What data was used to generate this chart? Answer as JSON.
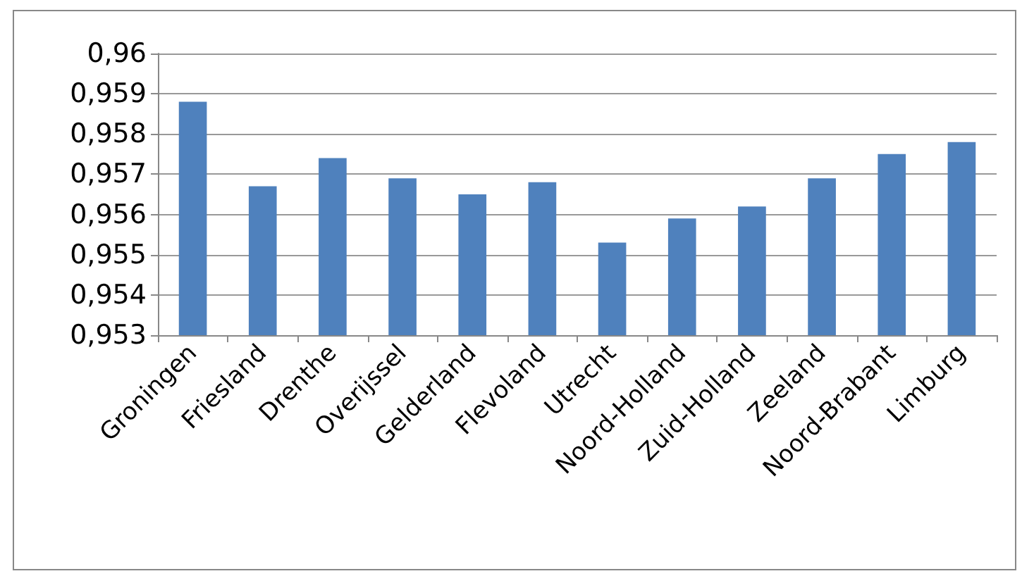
{
  "chart_data": {
    "type": "bar",
    "categories": [
      "Groningen",
      "Friesland",
      "Drenthe",
      "Overijssel",
      "Gelderland",
      "Flevoland",
      "Utrecht",
      "Noord-Holland",
      "Zuid-Holland",
      "Zeeland",
      "Noord-Brabant",
      "Limburg"
    ],
    "values": [
      0.9588,
      0.9567,
      0.9574,
      0.9569,
      0.9565,
      0.9568,
      0.9553,
      0.9559,
      0.9562,
      0.9569,
      0.9575,
      0.9578
    ],
    "color": "#4f81bd",
    "ylim": [
      0.953,
      0.96
    ],
    "yticks": [
      {
        "value": 0.953,
        "label": "0,953"
      },
      {
        "value": 0.954,
        "label": "0,954"
      },
      {
        "value": 0.955,
        "label": "0,955"
      },
      {
        "value": 0.956,
        "label": "0,956"
      },
      {
        "value": 0.957,
        "label": "0,957"
      },
      {
        "value": 0.958,
        "label": "0,958"
      },
      {
        "value": 0.959,
        "label": "0,959"
      },
      {
        "value": 0.96,
        "label": "0,96"
      }
    ],
    "grid": "y"
  }
}
